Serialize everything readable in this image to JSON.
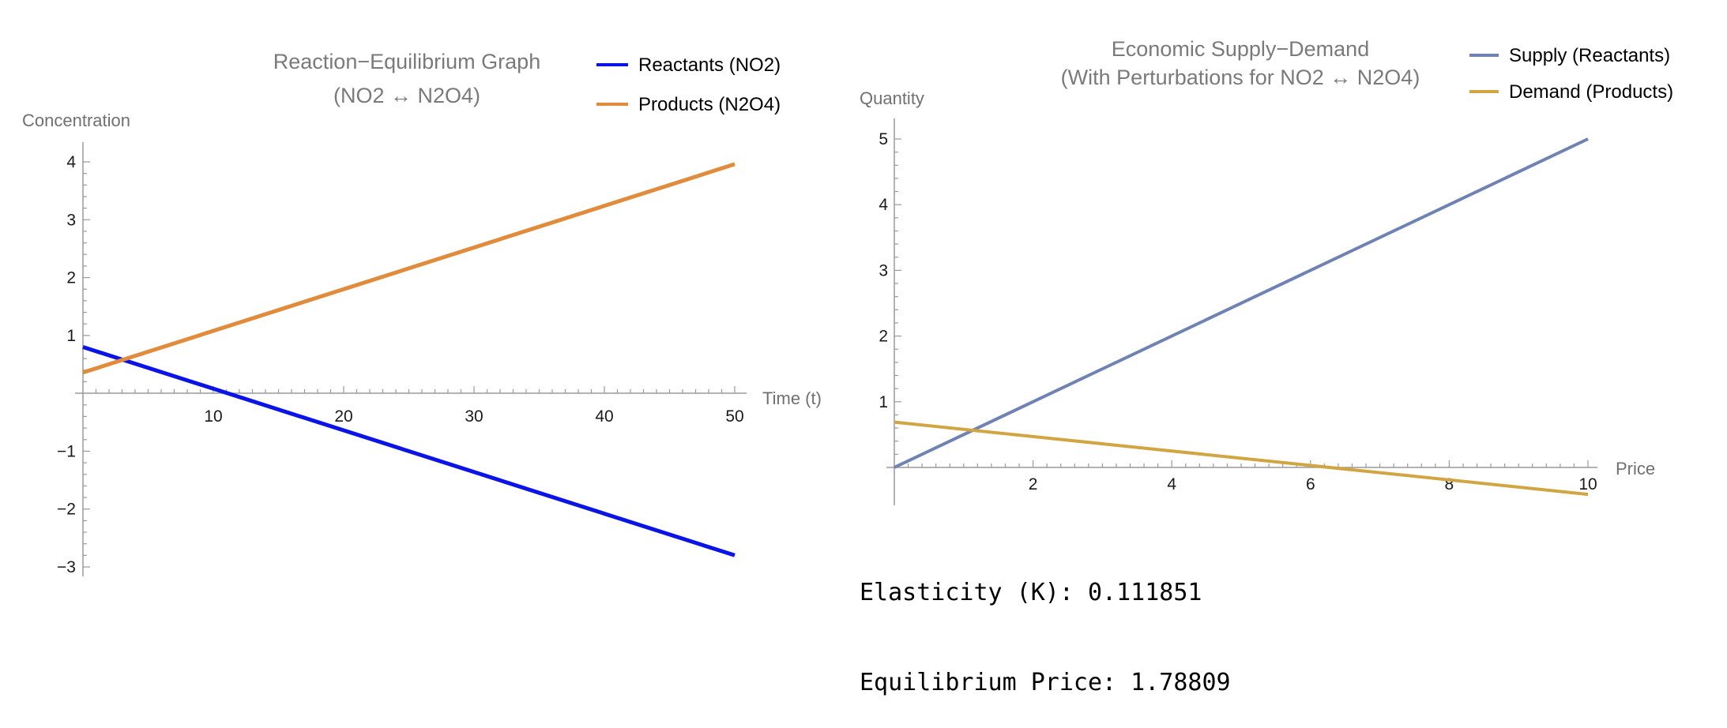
{
  "chart_data": [
    {
      "type": "line",
      "title_lines": [
        "Reaction−Equilibrium Graph",
        "(NO2 ↔ N2O4)"
      ],
      "xlabel": "Time (t)",
      "ylabel": "Concentration",
      "xlim": [
        0,
        50
      ],
      "ylim": [
        -3,
        4
      ],
      "x_ticks": [
        10,
        20,
        30,
        40,
        50
      ],
      "y_ticks": [
        -3,
        -2,
        -1,
        1,
        2,
        3,
        4
      ],
      "x_tick_labels": [
        "10",
        "20",
        "30",
        "40",
        "50"
      ],
      "y_tick_labels": [
        "−3",
        "−2",
        "−1",
        "1",
        "2",
        "3",
        "4"
      ],
      "grid": false,
      "legend_position": "top-right",
      "series": [
        {
          "name": "Reactants (NO2)",
          "color": "#0b14e6",
          "x": [
            0,
            50
          ],
          "y": [
            0.8,
            -2.8
          ]
        },
        {
          "name": "Products (N2O4)",
          "color": "#e08c3c",
          "x": [
            0,
            50
          ],
          "y": [
            0.36,
            3.96
          ]
        }
      ]
    },
    {
      "type": "line",
      "title_lines": [
        "Economic Supply−Demand",
        "(With Perturbations for NO2 ↔ N2O4)"
      ],
      "xlabel": "Price",
      "ylabel": "Quantity",
      "xlim": [
        0,
        10
      ],
      "ylim": [
        0,
        5
      ],
      "x_ticks": [
        2,
        4,
        6,
        8,
        10
      ],
      "y_ticks": [
        1,
        2,
        3,
        4,
        5
      ],
      "x_tick_labels": [
        "2",
        "4",
        "6",
        "8",
        "10"
      ],
      "y_tick_labels": [
        "1",
        "2",
        "3",
        "4",
        "5"
      ],
      "grid": false,
      "legend_position": "top-right",
      "series": [
        {
          "name": "Supply (Reactants)",
          "color": "#6f83b3",
          "x": [
            0,
            10
          ],
          "y": [
            0,
            5
          ]
        },
        {
          "name": "Demand (Products)",
          "color": "#d0a542",
          "x": [
            0,
            10
          ],
          "y": [
            0.69,
            -0.41
          ]
        }
      ]
    }
  ],
  "output": {
    "elasticity": "Elasticity (K): 0.111851",
    "equilibrium_price": "Equilibrium Price: 1.78809"
  }
}
